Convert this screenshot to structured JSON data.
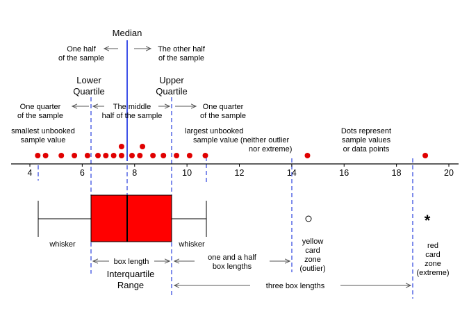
{
  "chart_data": {
    "type": "scatter",
    "axis": {
      "min": 4,
      "max": 20,
      "ticks": [
        4,
        6,
        8,
        10,
        12,
        14,
        16,
        18,
        20
      ]
    },
    "points": [
      {
        "x": 4.3,
        "y": 1
      },
      {
        "x": 4.6,
        "y": 1
      },
      {
        "x": 5.2,
        "y": 1
      },
      {
        "x": 5.7,
        "y": 1
      },
      {
        "x": 6.2,
        "y": 1
      },
      {
        "x": 6.6,
        "y": 1
      },
      {
        "x": 6.9,
        "y": 1
      },
      {
        "x": 7.2,
        "y": 1
      },
      {
        "x": 7.5,
        "y": 1
      },
      {
        "x": 7.5,
        "y": 2
      },
      {
        "x": 7.9,
        "y": 1
      },
      {
        "x": 8.2,
        "y": 1
      },
      {
        "x": 8.3,
        "y": 2
      },
      {
        "x": 8.7,
        "y": 1
      },
      {
        "x": 9.1,
        "y": 1
      },
      {
        "x": 9.6,
        "y": 1
      },
      {
        "x": 10.1,
        "y": 1
      },
      {
        "x": 10.7,
        "y": 1
      },
      {
        "x": 14.6,
        "y": 1
      },
      {
        "x": 19.1,
        "y": 1
      }
    ],
    "box": {
      "whisker_low": 4.3,
      "q1": 6.3,
      "median": 7.7,
      "q3": 9.4,
      "whisker_high": 10.7
    },
    "outlier": 14.6,
    "extreme": 19.1,
    "colors": {
      "box": "#ff0000",
      "dots": "#e00000",
      "guides": "#3a4fe0"
    }
  },
  "labels": {
    "median": "Median",
    "half_left_1": "One half",
    "half_left_2": "of the sample",
    "half_right_1": "The other half",
    "half_right_2": "of the sample",
    "lower_q_1": "Lower",
    "lower_q_2": "Quartile",
    "upper_q_1": "Upper",
    "upper_q_2": "Quartile",
    "quarter_left_1": "One quarter",
    "quarter_left_2": "of the sample",
    "middle_1": "The middle",
    "middle_2": "half of the sample",
    "quarter_right_1": "One quarter",
    "quarter_right_2": "of the sample",
    "smallest_1": "smallest unbooked",
    "smallest_2": "sample value",
    "largest_1": "largest unbooked",
    "largest_2": "sample value (neither outlier",
    "largest_3": "nor extreme)",
    "dots_1": "Dots represent",
    "dots_2": "sample values",
    "dots_3": "or data points",
    "whisker_left": "whisker",
    "whisker_right": "whisker",
    "yellow_1": "yellow",
    "yellow_2": "card",
    "yellow_3": "zone",
    "yellow_4": "(outlier)",
    "red_1": "red",
    "red_2": "card",
    "red_3": "zone",
    "red_4": "(extreme)",
    "box_length": "box length",
    "one_half_1": "one and a half",
    "one_half_2": "box lengths",
    "iqr_1": "Interquartile",
    "iqr_2": "Range",
    "three_box": "three box lengths",
    "extreme_symbol": "*"
  }
}
